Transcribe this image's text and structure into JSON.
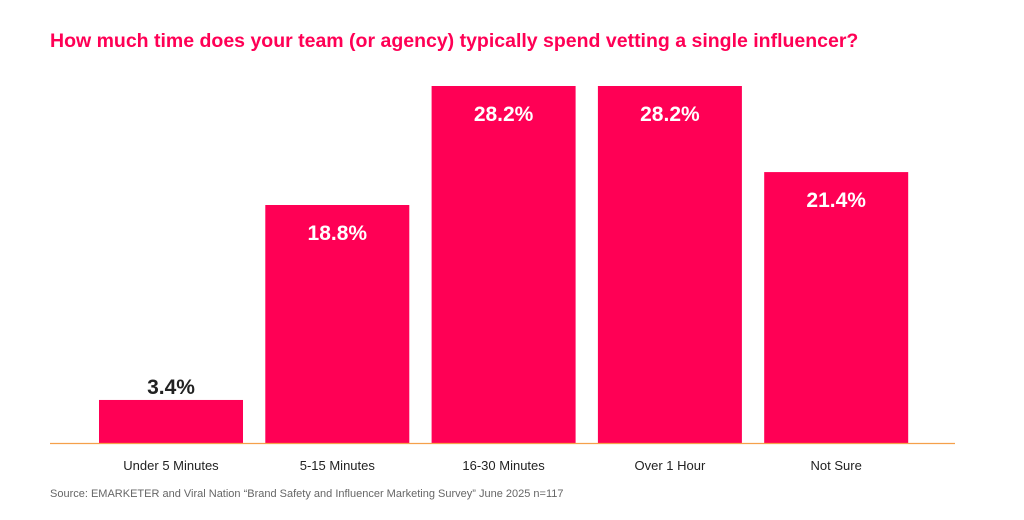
{
  "chart_data": {
    "type": "bar",
    "title": "How much time does your team (or agency) typically spend vetting a single influencer?",
    "categories": [
      "Under 5 Minutes",
      "5-15 Minutes",
      "16-30 Minutes",
      "Over 1 Hour",
      "Not Sure"
    ],
    "values": [
      3.4,
      18.8,
      28.2,
      28.2,
      21.4
    ],
    "data_labels": [
      "3.4%",
      "18.8%",
      "28.2%",
      "28.2%",
      "21.4%"
    ],
    "ylim": [
      0,
      28.2
    ],
    "grid": false,
    "xlabel": "",
    "ylabel": "",
    "colors": {
      "bar": "#ff0055",
      "title": "#ff0055",
      "axis": "#f5a04a",
      "label_inside": "#ffffff",
      "label_outside": "#222222"
    }
  },
  "source": "Source: EMARKETER and Viral Nation “Brand Safety and Influencer Marketing Survey” June 2025 n=117"
}
